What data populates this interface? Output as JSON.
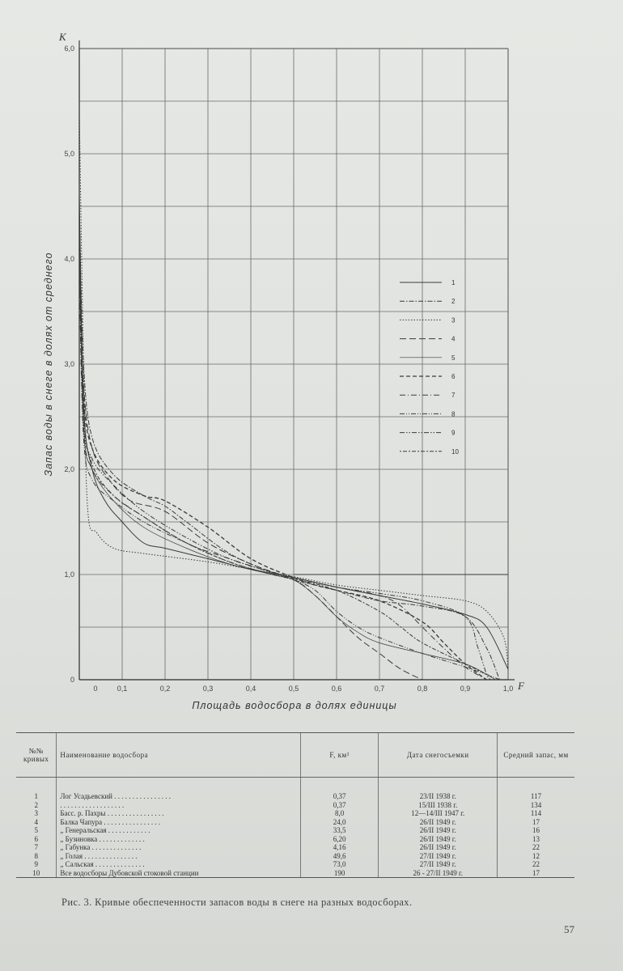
{
  "chart_data": {
    "type": "line",
    "y_letter": "K",
    "x_letter": "F",
    "xlabel": "Площадь водосбора в долях единицы",
    "ylabel": "Запас воды в снеге в долях от среднего",
    "xlim": [
      0,
      1.0
    ],
    "ylim": [
      0,
      6.0
    ],
    "x_ticks": [
      "0",
      "0,1",
      "0,2",
      "0,3",
      "0,4",
      "0,5",
      "0,6",
      "0,7",
      "0,8",
      "0,9",
      "1,0"
    ],
    "y_ticks": [
      "0",
      "1,0",
      "2,0",
      "3,0",
      "4,0",
      "5,0",
      "6,0"
    ],
    "grid": true,
    "legend_position": "right-middle",
    "series": [
      {
        "name": "1",
        "dash": "",
        "points": [
          [
            0,
            4.6
          ],
          [
            0.01,
            2.6
          ],
          [
            0.03,
            2.0
          ],
          [
            0.06,
            1.7
          ],
          [
            0.1,
            1.5
          ],
          [
            0.15,
            1.3
          ],
          [
            0.2,
            1.25
          ],
          [
            0.3,
            1.15
          ],
          [
            0.4,
            1.05
          ],
          [
            0.5,
            0.97
          ],
          [
            0.6,
            0.88
          ],
          [
            0.7,
            0.8
          ],
          [
            0.8,
            0.72
          ],
          [
            0.9,
            0.62
          ],
          [
            0.95,
            0.5
          ],
          [
            1.0,
            0.1
          ]
        ]
      },
      {
        "name": "2",
        "dash": "6,2,1.5,2",
        "points": [
          [
            0,
            4.5
          ],
          [
            0.01,
            3.0
          ],
          [
            0.03,
            2.3
          ],
          [
            0.08,
            1.95
          ],
          [
            0.15,
            1.75
          ],
          [
            0.2,
            1.65
          ],
          [
            0.25,
            1.5
          ],
          [
            0.35,
            1.2
          ],
          [
            0.45,
            1.02
          ],
          [
            0.5,
            0.95
          ],
          [
            0.6,
            0.85
          ],
          [
            0.7,
            0.75
          ],
          [
            0.8,
            0.7
          ],
          [
            0.9,
            0.6
          ],
          [
            0.95,
            0.3
          ],
          [
            0.98,
            0.0
          ]
        ]
      },
      {
        "name": "3",
        "dash": "1.5,2",
        "points": [
          [
            0,
            5.4
          ],
          [
            0.01,
            3.0
          ],
          [
            0.02,
            1.6
          ],
          [
            0.04,
            1.4
          ],
          [
            0.08,
            1.25
          ],
          [
            0.15,
            1.2
          ],
          [
            0.3,
            1.12
          ],
          [
            0.4,
            1.05
          ],
          [
            0.5,
            0.98
          ],
          [
            0.6,
            0.9
          ],
          [
            0.7,
            0.85
          ],
          [
            0.8,
            0.8
          ],
          [
            0.9,
            0.75
          ],
          [
            0.95,
            0.65
          ],
          [
            0.99,
            0.4
          ],
          [
            1.0,
            0.1
          ]
        ]
      },
      {
        "name": "4",
        "dash": "8,4",
        "points": [
          [
            0,
            4.0
          ],
          [
            0.01,
            2.8
          ],
          [
            0.03,
            2.2
          ],
          [
            0.07,
            1.9
          ],
          [
            0.12,
            1.7
          ],
          [
            0.2,
            1.6
          ],
          [
            0.3,
            1.3
          ],
          [
            0.4,
            1.1
          ],
          [
            0.5,
            0.95
          ],
          [
            0.55,
            0.8
          ],
          [
            0.6,
            0.6
          ],
          [
            0.65,
            0.4
          ],
          [
            0.7,
            0.25
          ],
          [
            0.75,
            0.1
          ],
          [
            0.8,
            0.0
          ]
        ]
      },
      {
        "name": "5",
        "dash": "",
        "width": 0.7,
        "points": [
          [
            0,
            4.2
          ],
          [
            0.01,
            2.4
          ],
          [
            0.03,
            2.0
          ],
          [
            0.08,
            1.7
          ],
          [
            0.15,
            1.45
          ],
          [
            0.25,
            1.25
          ],
          [
            0.35,
            1.1
          ],
          [
            0.45,
            1.0
          ],
          [
            0.5,
            0.95
          ],
          [
            0.55,
            0.8
          ],
          [
            0.6,
            0.6
          ],
          [
            0.65,
            0.45
          ],
          [
            0.7,
            0.35
          ],
          [
            0.8,
            0.25
          ],
          [
            0.9,
            0.15
          ],
          [
            0.95,
            0.05
          ],
          [
            0.97,
            0.0
          ]
        ]
      },
      {
        "name": "6",
        "dash": "5,3",
        "width": 1.3,
        "points": [
          [
            0,
            4.1
          ],
          [
            0.01,
            2.7
          ],
          [
            0.03,
            2.2
          ],
          [
            0.08,
            1.9
          ],
          [
            0.15,
            1.75
          ],
          [
            0.2,
            1.7
          ],
          [
            0.3,
            1.45
          ],
          [
            0.4,
            1.15
          ],
          [
            0.5,
            0.97
          ],
          [
            0.55,
            0.9
          ],
          [
            0.6,
            0.85
          ],
          [
            0.7,
            0.75
          ],
          [
            0.8,
            0.55
          ],
          [
            0.85,
            0.35
          ],
          [
            0.9,
            0.15
          ],
          [
            0.95,
            0.0
          ]
        ]
      },
      {
        "name": "7",
        "dash": "7,3,1,3",
        "points": [
          [
            0,
            3.9
          ],
          [
            0.01,
            2.4
          ],
          [
            0.03,
            2.0
          ],
          [
            0.08,
            1.75
          ],
          [
            0.15,
            1.55
          ],
          [
            0.25,
            1.3
          ],
          [
            0.35,
            1.15
          ],
          [
            0.45,
            1.02
          ],
          [
            0.5,
            0.97
          ],
          [
            0.6,
            0.88
          ],
          [
            0.7,
            0.8
          ],
          [
            0.75,
            0.7
          ],
          [
            0.8,
            0.5
          ],
          [
            0.85,
            0.3
          ],
          [
            0.9,
            0.12
          ],
          [
            0.95,
            0.0
          ]
        ]
      },
      {
        "name": "8",
        "dash": "6,2,1,2,1,2",
        "points": [
          [
            0,
            3.8
          ],
          [
            0.01,
            2.3
          ],
          [
            0.03,
            1.9
          ],
          [
            0.08,
            1.7
          ],
          [
            0.15,
            1.5
          ],
          [
            0.25,
            1.3
          ],
          [
            0.35,
            1.12
          ],
          [
            0.45,
            1.0
          ],
          [
            0.5,
            0.95
          ],
          [
            0.55,
            0.85
          ],
          [
            0.6,
            0.65
          ],
          [
            0.65,
            0.5
          ],
          [
            0.7,
            0.4
          ],
          [
            0.8,
            0.25
          ],
          [
            0.9,
            0.12
          ],
          [
            0.95,
            0.05
          ],
          [
            0.98,
            0.0
          ]
        ]
      },
      {
        "name": "9",
        "dash": "6,2,1.5,2,1.5,2",
        "points": [
          [
            0,
            4.3
          ],
          [
            0.01,
            2.5
          ],
          [
            0.03,
            2.1
          ],
          [
            0.08,
            1.85
          ],
          [
            0.15,
            1.6
          ],
          [
            0.25,
            1.35
          ],
          [
            0.35,
            1.15
          ],
          [
            0.45,
            1.02
          ],
          [
            0.5,
            0.97
          ],
          [
            0.6,
            0.88
          ],
          [
            0.7,
            0.82
          ],
          [
            0.8,
            0.75
          ],
          [
            0.9,
            0.6
          ],
          [
            0.93,
            0.3
          ],
          [
            0.95,
            0.05
          ],
          [
            0.96,
            0.0
          ]
        ]
      },
      {
        "name": "10",
        "dash": "2,2,5,2",
        "points": [
          [
            0,
            4.4
          ],
          [
            0.01,
            2.6
          ],
          [
            0.03,
            2.05
          ],
          [
            0.08,
            1.75
          ],
          [
            0.15,
            1.55
          ],
          [
            0.25,
            1.3
          ],
          [
            0.35,
            1.12
          ],
          [
            0.45,
            1.0
          ],
          [
            0.5,
            0.96
          ],
          [
            0.6,
            0.85
          ],
          [
            0.7,
            0.65
          ],
          [
            0.75,
            0.5
          ],
          [
            0.8,
            0.35
          ],
          [
            0.9,
            0.15
          ],
          [
            0.95,
            0.05
          ],
          [
            0.97,
            0.0
          ]
        ]
      }
    ]
  },
  "table": {
    "headers": {
      "num": "№№ кривых",
      "name": "Наименование водосбора",
      "area": "F, км²",
      "date": "Дата снегосъемки",
      "mean": "Средний запас, мм"
    },
    "rows": [
      {
        "num": "1",
        "name": "Лог Усадьевский . . . . . . . . . . . . . . . .",
        "area": "0,37",
        "date": "23/II 1938 г.",
        "mean": "117"
      },
      {
        "num": "2",
        "name": "          . . . . . . . . . . . . . . . . . .",
        "area": "0,37",
        "date": "15/III 1938 г.",
        "mean": "134"
      },
      {
        "num": "3",
        "name": "Басс. р. Пахры . . . . . . . . . . . . . . . .",
        "area": "8,0",
        "date": "12—14/III 1947 г.",
        "mean": "114"
      },
      {
        "num": "4",
        "name": "Балка Чапура . . . . . . . . . . . . . . . .",
        "area": "24,0",
        "date": "26/II 1949 г.",
        "mean": "17"
      },
      {
        "num": "5",
        "name": "   „   Генеральская . . . . . . . . . . . .",
        "area": "33,5",
        "date": "26/II 1949 г.",
        "mean": "16"
      },
      {
        "num": "6",
        "name": "   „   Бузиновка . . . . . . . . . . . . .",
        "area": "6,20",
        "date": "26/II 1949 г.",
        "mean": "13"
      },
      {
        "num": "7",
        "name": "   „   Габунка . . . . . . . . . . . . . .",
        "area": "4,16",
        "date": "26/II 1949 г.",
        "mean": "22"
      },
      {
        "num": "8",
        "name": "   „   Голая . . . . . . . . . . . . . . .",
        "area": "49,6",
        "date": "27/II 1949 г.",
        "mean": "12"
      },
      {
        "num": "9",
        "name": "   „   Сальская . . . . . . . . . . . . . .",
        "area": "73,0",
        "date": "27/II 1949 г.",
        "mean": "22"
      },
      {
        "num": "10",
        "name": "Все водосборы Дубовской стоковой станции",
        "area": "190",
        "date": "26 - 27/II 1949 г.",
        "mean": "17"
      }
    ]
  },
  "caption": "Рис. 3. Кривые обеспеченности запасов воды в снеге на разных водосборах.",
  "page_number": "57",
  "colors": {
    "ink": "#3a3a3a",
    "paper": "#e3e5e2",
    "grid": "#6a6a6a"
  }
}
